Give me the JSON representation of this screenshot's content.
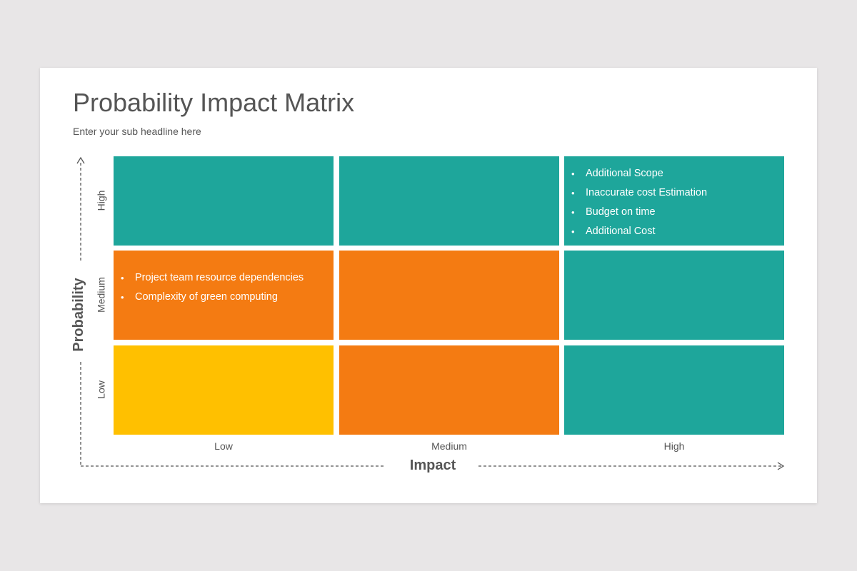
{
  "slide": {
    "title": "Probability Impact Matrix",
    "subtitle": "Enter your sub headline here"
  },
  "axes": {
    "x_title": "Impact",
    "y_title": "Probability",
    "x_labels": [
      "Low",
      "Medium",
      "High"
    ],
    "y_labels": [
      "High",
      "Medium",
      "Low"
    ]
  },
  "colors": {
    "teal": "#1ea69b",
    "orange": "#f47b12",
    "yellow": "#ffc000"
  },
  "matrix": {
    "high_high": [
      "Additional Scope",
      "Inaccurate cost Estimation",
      "Budget on time",
      "Additional Cost"
    ],
    "medium_low": [
      "Project team resource dependencies",
      "Complexity of green computing"
    ]
  }
}
